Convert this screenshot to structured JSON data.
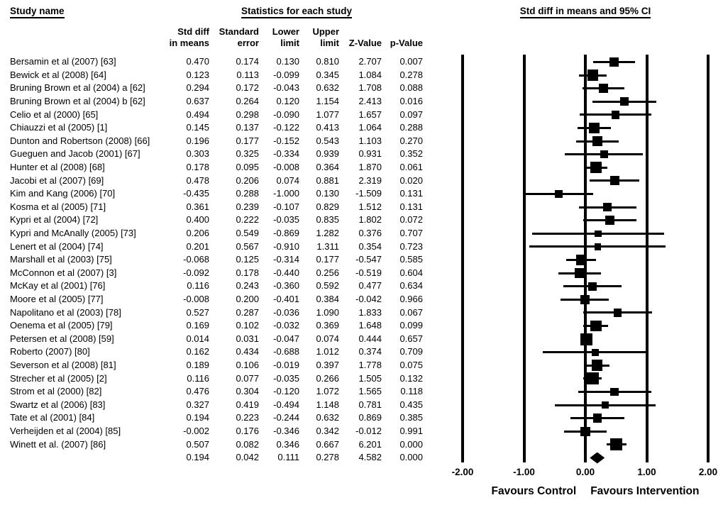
{
  "header": {
    "study_col_title": "Study name",
    "stats_title": "Statistics for each study",
    "plot_title": "Std diff in means and 95% CI",
    "columns": [
      {
        "line1": "Std diff",
        "line2": "in means"
      },
      {
        "line1": "Standard",
        "line2": "error"
      },
      {
        "line1": "Lower",
        "line2": "limit"
      },
      {
        "line1": "Upper",
        "line2": "limit"
      },
      {
        "line1": "",
        "line2": "Z-Value"
      },
      {
        "line1": "",
        "line2": "p-Value"
      }
    ]
  },
  "colors": {
    "ink": "#000000",
    "background": "#ffffff"
  },
  "chart_data": {
    "type": "forest",
    "title": "Std diff in means and 95% CI",
    "x_axis": {
      "range": [
        -2,
        2
      ],
      "ticks": [
        "-2.00",
        "-1.00",
        "0.00",
        "1.00",
        "2.00"
      ],
      "tick_values": [
        -2,
        -1,
        0,
        1,
        2
      ]
    },
    "footer": {
      "left": "Favours Control",
      "right": "Favours Intervention"
    },
    "studies": [
      {
        "name": "Bersamin et al (2007) [63]",
        "std_diff": "0.470",
        "std_err": "0.174",
        "lower": "0.130",
        "upper": "0.810",
        "z": "2.707",
        "p": "0.007"
      },
      {
        "name": "Bewick et al (2008) [64]",
        "std_diff": "0.123",
        "std_err": "0.113",
        "lower": "-0.099",
        "upper": "0.345",
        "z": "1.084",
        "p": "0.278"
      },
      {
        "name": "Bruning Brown et al (2004) a [62]",
        "std_diff": "0.294",
        "std_err": "0.172",
        "lower": "-0.043",
        "upper": "0.632",
        "z": "1.708",
        "p": "0.088"
      },
      {
        "name": "Bruning Brown et al (2004) b [62]",
        "std_diff": "0.637",
        "std_err": "0.264",
        "lower": "0.120",
        "upper": "1.154",
        "z": "2.413",
        "p": "0.016"
      },
      {
        "name": "Celio et al (2000) [65]",
        "std_diff": "0.494",
        "std_err": "0.298",
        "lower": "-0.090",
        "upper": "1.077",
        "z": "1.657",
        "p": "0.097"
      },
      {
        "name": "Chiauzzi et al (2005) [1]",
        "std_diff": "0.145",
        "std_err": "0.137",
        "lower": "-0.122",
        "upper": "0.413",
        "z": "1.064",
        "p": "0.288"
      },
      {
        "name": "Dunton and Robertson (2008) [66]",
        "std_diff": "0.196",
        "std_err": "0.177",
        "lower": "-0.152",
        "upper": "0.543",
        "z": "1.103",
        "p": "0.270"
      },
      {
        "name": "Gueguen and Jacob (2001) [67]",
        "std_diff": "0.303",
        "std_err": "0.325",
        "lower": "-0.334",
        "upper": "0.939",
        "z": "0.931",
        "p": "0.352"
      },
      {
        "name": "Hunter et al (2008) [68]",
        "std_diff": "0.178",
        "std_err": "0.095",
        "lower": "-0.008",
        "upper": "0.364",
        "z": "1.870",
        "p": "0.061"
      },
      {
        "name": "Jacobi et al (2007) [69]",
        "std_diff": "0.478",
        "std_err": "0.206",
        "lower": "0.074",
        "upper": "0.881",
        "z": "2.319",
        "p": "0.020"
      },
      {
        "name": "Kim and Kang (2006) [70]",
        "std_diff": "-0.435",
        "std_err": "0.288",
        "lower": "-1.000",
        "upper": "0.130",
        "z": "-1.509",
        "p": "0.131"
      },
      {
        "name": "Kosma et al (2005) [71]",
        "std_diff": "0.361",
        "std_err": "0.239",
        "lower": "-0.107",
        "upper": "0.829",
        "z": "1.512",
        "p": "0.131"
      },
      {
        "name": "Kypri et al (2004) [72]",
        "std_diff": "0.400",
        "std_err": "0.222",
        "lower": "-0.035",
        "upper": "0.835",
        "z": "1.802",
        "p": "0.072"
      },
      {
        "name": "Kypri and McAnally (2005) [73]",
        "std_diff": "0.206",
        "std_err": "0.549",
        "lower": "-0.869",
        "upper": "1.282",
        "z": "0.376",
        "p": "0.707"
      },
      {
        "name": "Lenert et al (2004) [74]",
        "std_diff": "0.201",
        "std_err": "0.567",
        "lower": "-0.910",
        "upper": "1.311",
        "z": "0.354",
        "p": "0.723"
      },
      {
        "name": "Marshall et al (2003) [75]",
        "std_diff": "-0.068",
        "std_err": "0.125",
        "lower": "-0.314",
        "upper": "0.177",
        "z": "-0.547",
        "p": "0.585"
      },
      {
        "name": "McConnon et al (2007) [3]",
        "std_diff": "-0.092",
        "std_err": "0.178",
        "lower": "-0.440",
        "upper": "0.256",
        "z": "-0.519",
        "p": "0.604"
      },
      {
        "name": "McKay et al (2001) [76]",
        "std_diff": "0.116",
        "std_err": "0.243",
        "lower": "-0.360",
        "upper": "0.592",
        "z": "0.477",
        "p": "0.634"
      },
      {
        "name": "Moore et al (2005) [77]",
        "std_diff": "-0.008",
        "std_err": "0.200",
        "lower": "-0.401",
        "upper": "0.384",
        "z": "-0.042",
        "p": "0.966"
      },
      {
        "name": "Napolitano et al (2003) [78]",
        "std_diff": "0.527",
        "std_err": "0.287",
        "lower": "-0.036",
        "upper": "1.090",
        "z": "1.833",
        "p": "0.067"
      },
      {
        "name": "Oenema et al (2005) [79]",
        "std_diff": "0.169",
        "std_err": "0.102",
        "lower": "-0.032",
        "upper": "0.369",
        "z": "1.648",
        "p": "0.099"
      },
      {
        "name": "Petersen et al (2008) [59]",
        "std_diff": "0.014",
        "std_err": "0.031",
        "lower": "-0.047",
        "upper": "0.074",
        "z": "0.444",
        "p": "0.657"
      },
      {
        "name": "Roberto (2007) [80]",
        "std_diff": "0.162",
        "std_err": "0.434",
        "lower": "-0.688",
        "upper": "1.012",
        "z": "0.374",
        "p": "0.709"
      },
      {
        "name": "Severson et al (2008) [81]",
        "std_diff": "0.189",
        "std_err": "0.106",
        "lower": "-0.019",
        "upper": "0.397",
        "z": "1.778",
        "p": "0.075"
      },
      {
        "name": "Strecher et al (2005) [2]",
        "std_diff": "0.116",
        "std_err": "0.077",
        "lower": "-0.035",
        "upper": "0.266",
        "z": "1.505",
        "p": "0.132"
      },
      {
        "name": "Strom et al (2000) [82]",
        "std_diff": "0.476",
        "std_err": "0.304",
        "lower": "-0.120",
        "upper": "1.072",
        "z": "1.565",
        "p": "0.118"
      },
      {
        "name": "Swartz et al (2006) [83]",
        "std_diff": "0.327",
        "std_err": "0.419",
        "lower": "-0.494",
        "upper": "1.148",
        "z": "0.781",
        "p": "0.435"
      },
      {
        "name": "Tate et al (2001) [84]",
        "std_diff": "0.194",
        "std_err": "0.223",
        "lower": "-0.244",
        "upper": "0.632",
        "z": "0.869",
        "p": "0.385"
      },
      {
        "name": "Verheijden et al (2004) [85]",
        "std_diff": "-0.002",
        "std_err": "0.176",
        "lower": "-0.346",
        "upper": "0.342",
        "z": "-0.012",
        "p": "0.991"
      },
      {
        "name": "Winett et al. (2007) [86]",
        "std_diff": "0.507",
        "std_err": "0.082",
        "lower": "0.346",
        "upper": "0.667",
        "z": "6.201",
        "p": "0.000"
      }
    ],
    "pooled": {
      "name": "",
      "std_diff": "0.194",
      "std_err": "0.042",
      "lower": "0.111",
      "upper": "0.278",
      "z": "4.582",
      "p": "0.000",
      "marker": "diamond"
    }
  }
}
